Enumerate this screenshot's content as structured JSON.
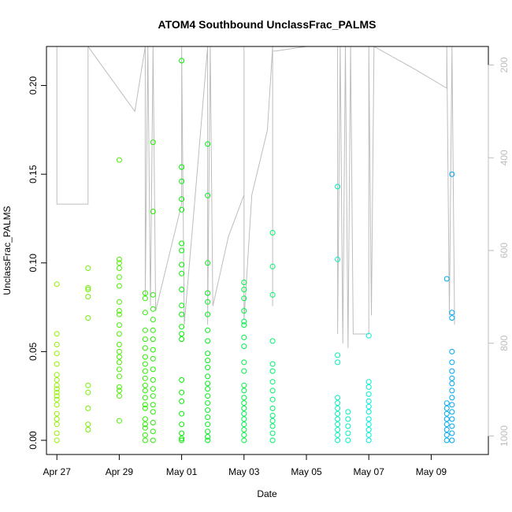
{
  "chart_data": {
    "type": "scatter",
    "title": "ATOM4 Southbound UnclassFrac_PALMS",
    "xlabel": "Date",
    "ylabel": "UnclassFrac_PALMS",
    "x_unit": "date",
    "xlim": [
      "2016-04-26T16:00",
      "2016-05-10T20:00"
    ],
    "ylim": [
      -0.008,
      0.222
    ],
    "x_ticks": [
      {
        "label": "Apr 27",
        "x": "2016-04-27"
      },
      {
        "label": "Apr 29",
        "x": "2016-04-29"
      },
      {
        "label": "May 01",
        "x": "2016-05-01"
      },
      {
        "label": "May 03",
        "x": "2016-05-03"
      },
      {
        "label": "May 05",
        "x": "2016-05-05"
      },
      {
        "label": "May 07",
        "x": "2016-05-07"
      },
      {
        "label": "May 09",
        "x": "2016-05-09"
      }
    ],
    "y_ticks": [
      "0.00",
      "0.05",
      "0.10",
      "0.15",
      "0.20"
    ],
    "right_axis": {
      "color": "#bdbdbd",
      "ylim": [
        1040,
        160
      ],
      "ticks": [
        "200",
        "400",
        "600",
        "800",
        "1000"
      ]
    },
    "point_color_scale": "time, green to blue",
    "points": [
      [
        "2016-04-27T00:00",
        0.0
      ],
      [
        "2016-04-27T00:00",
        0.004
      ],
      [
        "2016-04-27T00:00",
        0.009
      ],
      [
        "2016-04-27T00:00",
        0.012
      ],
      [
        "2016-04-27T00:00",
        0.015
      ],
      [
        "2016-04-27T00:00",
        0.02
      ],
      [
        "2016-04-27T00:00",
        0.023
      ],
      [
        "2016-04-27T00:00",
        0.025
      ],
      [
        "2016-04-27T00:00",
        0.027
      ],
      [
        "2016-04-27T00:00",
        0.029
      ],
      [
        "2016-04-27T00:00",
        0.031
      ],
      [
        "2016-04-27T00:00",
        0.034
      ],
      [
        "2016-04-27T00:00",
        0.037
      ],
      [
        "2016-04-27T00:00",
        0.043
      ],
      [
        "2016-04-27T00:00",
        0.049
      ],
      [
        "2016-04-27T00:00",
        0.054
      ],
      [
        "2016-04-27T00:00",
        0.06
      ],
      [
        "2016-04-27T00:00",
        0.088
      ],
      [
        "2016-04-28T00:00",
        0.006
      ],
      [
        "2016-04-28T00:00",
        0.009
      ],
      [
        "2016-04-28T00:00",
        0.018
      ],
      [
        "2016-04-28T00:00",
        0.027
      ],
      [
        "2016-04-28T00:00",
        0.031
      ],
      [
        "2016-04-28T00:00",
        0.069
      ],
      [
        "2016-04-28T00:00",
        0.081
      ],
      [
        "2016-04-28T00:00",
        0.085
      ],
      [
        "2016-04-28T00:00",
        0.086
      ],
      [
        "2016-04-28T00:00",
        0.097
      ],
      [
        "2016-04-29T00:00",
        0.011
      ],
      [
        "2016-04-29T00:00",
        0.025
      ],
      [
        "2016-04-29T00:00",
        0.028
      ],
      [
        "2016-04-29T00:00",
        0.03
      ],
      [
        "2016-04-29T00:00",
        0.036
      ],
      [
        "2016-04-29T00:00",
        0.04
      ],
      [
        "2016-04-29T00:00",
        0.044
      ],
      [
        "2016-04-29T00:00",
        0.047
      ],
      [
        "2016-04-29T00:00",
        0.05
      ],
      [
        "2016-04-29T00:00",
        0.054
      ],
      [
        "2016-04-29T00:00",
        0.06
      ],
      [
        "2016-04-29T00:00",
        0.065
      ],
      [
        "2016-04-29T00:00",
        0.071
      ],
      [
        "2016-04-29T00:00",
        0.073
      ],
      [
        "2016-04-29T00:00",
        0.078
      ],
      [
        "2016-04-29T00:00",
        0.087
      ],
      [
        "2016-04-29T00:00",
        0.092
      ],
      [
        "2016-04-29T00:00",
        0.097
      ],
      [
        "2016-04-29T00:00",
        0.1
      ],
      [
        "2016-04-29T00:00",
        0.102
      ],
      [
        "2016-04-29T00:00",
        0.158
      ],
      [
        "2016-04-29T20:00",
        0.0
      ],
      [
        "2016-04-29T20:00",
        0.003
      ],
      [
        "2016-04-29T20:00",
        0.007
      ],
      [
        "2016-04-29T20:00",
        0.009
      ],
      [
        "2016-04-29T20:00",
        0.012
      ],
      [
        "2016-04-29T20:00",
        0.018
      ],
      [
        "2016-04-29T20:00",
        0.02
      ],
      [
        "2016-04-29T20:00",
        0.024
      ],
      [
        "2016-04-29T20:00",
        0.028
      ],
      [
        "2016-04-29T20:00",
        0.031
      ],
      [
        "2016-04-29T20:00",
        0.035
      ],
      [
        "2016-04-29T20:00",
        0.039
      ],
      [
        "2016-04-29T20:00",
        0.043
      ],
      [
        "2016-04-29T20:00",
        0.047
      ],
      [
        "2016-04-29T20:00",
        0.052
      ],
      [
        "2016-04-29T20:00",
        0.057
      ],
      [
        "2016-04-29T20:00",
        0.062
      ],
      [
        "2016-04-29T20:00",
        0.072
      ],
      [
        "2016-04-29T20:00",
        0.08
      ],
      [
        "2016-04-29T20:00",
        0.083
      ],
      [
        "2016-04-30T02:00",
        0.0
      ],
      [
        "2016-04-30T02:00",
        0.005
      ],
      [
        "2016-04-30T02:00",
        0.01
      ],
      [
        "2016-04-30T02:00",
        0.016
      ],
      [
        "2016-04-30T02:00",
        0.02
      ],
      [
        "2016-04-30T02:00",
        0.025
      ],
      [
        "2016-04-30T02:00",
        0.029
      ],
      [
        "2016-04-30T02:00",
        0.034
      ],
      [
        "2016-04-30T02:00",
        0.04
      ],
      [
        "2016-04-30T02:00",
        0.046
      ],
      [
        "2016-04-30T02:00",
        0.051
      ],
      [
        "2016-04-30T02:00",
        0.057
      ],
      [
        "2016-04-30T02:00",
        0.062
      ],
      [
        "2016-04-30T02:00",
        0.068
      ],
      [
        "2016-04-30T02:00",
        0.074
      ],
      [
        "2016-04-30T02:00",
        0.082
      ],
      [
        "2016-04-30T02:00",
        0.129
      ],
      [
        "2016-04-30T02:00",
        0.168
      ],
      [
        "2016-05-01T00:00",
        0.0
      ],
      [
        "2016-05-01T00:00",
        0.001
      ],
      [
        "2016-05-01T00:00",
        0.004
      ],
      [
        "2016-05-01T00:00",
        0.009
      ],
      [
        "2016-05-01T00:00",
        0.015
      ],
      [
        "2016-05-01T00:00",
        0.022
      ],
      [
        "2016-05-01T00:00",
        0.027
      ],
      [
        "2016-05-01T00:00",
        0.034
      ],
      [
        "2016-05-01T00:00",
        0.057
      ],
      [
        "2016-05-01T00:00",
        0.06
      ],
      [
        "2016-05-01T00:00",
        0.064
      ],
      [
        "2016-05-01T00:00",
        0.071
      ],
      [
        "2016-05-01T00:00",
        0.076
      ],
      [
        "2016-05-01T00:00",
        0.085
      ],
      [
        "2016-05-01T00:00",
        0.094
      ],
      [
        "2016-05-01T00:00",
        0.099
      ],
      [
        "2016-05-01T00:00",
        0.107
      ],
      [
        "2016-05-01T00:00",
        0.111
      ],
      [
        "2016-05-01T00:00",
        0.13
      ],
      [
        "2016-05-01T00:00",
        0.136
      ],
      [
        "2016-05-01T00:00",
        0.146
      ],
      [
        "2016-05-01T00:00",
        0.154
      ],
      [
        "2016-05-01T00:00",
        0.214
      ],
      [
        "2016-05-01T20:00",
        0.0
      ],
      [
        "2016-05-01T20:00",
        0.002
      ],
      [
        "2016-05-01T20:00",
        0.005
      ],
      [
        "2016-05-01T20:00",
        0.009
      ],
      [
        "2016-05-01T20:00",
        0.013
      ],
      [
        "2016-05-01T20:00",
        0.017
      ],
      [
        "2016-05-01T20:00",
        0.021
      ],
      [
        "2016-05-01T20:00",
        0.025
      ],
      [
        "2016-05-01T20:00",
        0.029
      ],
      [
        "2016-05-01T20:00",
        0.032
      ],
      [
        "2016-05-01T20:00",
        0.036
      ],
      [
        "2016-05-01T20:00",
        0.041
      ],
      [
        "2016-05-01T20:00",
        0.045
      ],
      [
        "2016-05-01T20:00",
        0.049
      ],
      [
        "2016-05-01T20:00",
        0.056
      ],
      [
        "2016-05-01T20:00",
        0.062
      ],
      [
        "2016-05-01T20:00",
        0.071
      ],
      [
        "2016-05-01T20:00",
        0.078
      ],
      [
        "2016-05-01T20:00",
        0.083
      ],
      [
        "2016-05-01T20:00",
        0.1
      ],
      [
        "2016-05-01T20:00",
        0.138
      ],
      [
        "2016-05-01T20:00",
        0.167
      ],
      [
        "2016-05-03T00:00",
        0.0
      ],
      [
        "2016-05-03T00:00",
        0.003
      ],
      [
        "2016-05-03T00:00",
        0.006
      ],
      [
        "2016-05-03T00:00",
        0.009
      ],
      [
        "2016-05-03T00:00",
        0.012
      ],
      [
        "2016-05-03T00:00",
        0.015
      ],
      [
        "2016-05-03T00:00",
        0.018
      ],
      [
        "2016-05-03T00:00",
        0.021
      ],
      [
        "2016-05-03T00:00",
        0.024
      ],
      [
        "2016-05-03T00:00",
        0.028
      ],
      [
        "2016-05-03T00:00",
        0.031
      ],
      [
        "2016-05-03T00:00",
        0.039
      ],
      [
        "2016-05-03T00:00",
        0.044
      ],
      [
        "2016-05-03T00:00",
        0.053
      ],
      [
        "2016-05-03T00:00",
        0.058
      ],
      [
        "2016-05-03T00:00",
        0.065
      ],
      [
        "2016-05-03T00:00",
        0.067
      ],
      [
        "2016-05-03T00:00",
        0.073
      ],
      [
        "2016-05-03T00:00",
        0.08
      ],
      [
        "2016-05-03T00:00",
        0.085
      ],
      [
        "2016-05-03T00:00",
        0.089
      ],
      [
        "2016-05-03T22:00",
        0.0
      ],
      [
        "2016-05-03T22:00",
        0.004
      ],
      [
        "2016-05-03T22:00",
        0.008
      ],
      [
        "2016-05-03T22:00",
        0.011
      ],
      [
        "2016-05-03T22:00",
        0.014
      ],
      [
        "2016-05-03T22:00",
        0.018
      ],
      [
        "2016-05-03T22:00",
        0.023
      ],
      [
        "2016-05-03T22:00",
        0.028
      ],
      [
        "2016-05-03T22:00",
        0.033
      ],
      [
        "2016-05-03T22:00",
        0.039
      ],
      [
        "2016-05-03T22:00",
        0.043
      ],
      [
        "2016-05-03T22:00",
        0.056
      ],
      [
        "2016-05-03T22:00",
        0.082
      ],
      [
        "2016-05-03T22:00",
        0.098
      ],
      [
        "2016-05-03T22:00",
        0.117
      ],
      [
        "2016-05-06T00:00",
        0.0
      ],
      [
        "2016-05-06T00:00",
        0.003
      ],
      [
        "2016-05-06T00:00",
        0.006
      ],
      [
        "2016-05-06T00:00",
        0.009
      ],
      [
        "2016-05-06T00:00",
        0.012
      ],
      [
        "2016-05-06T00:00",
        0.015
      ],
      [
        "2016-05-06T00:00",
        0.018
      ],
      [
        "2016-05-06T00:00",
        0.021
      ],
      [
        "2016-05-06T00:00",
        0.024
      ],
      [
        "2016-05-06T00:00",
        0.044
      ],
      [
        "2016-05-06T00:00",
        0.048
      ],
      [
        "2016-05-06T00:00",
        0.102
      ],
      [
        "2016-05-06T00:00",
        0.143
      ],
      [
        "2016-05-06T08:00",
        0.0
      ],
      [
        "2016-05-06T08:00",
        0.004
      ],
      [
        "2016-05-06T08:00",
        0.008
      ],
      [
        "2016-05-06T08:00",
        0.012
      ],
      [
        "2016-05-06T08:00",
        0.016
      ],
      [
        "2016-05-07T00:00",
        0.0
      ],
      [
        "2016-05-07T00:00",
        0.003
      ],
      [
        "2016-05-07T00:00",
        0.006
      ],
      [
        "2016-05-07T00:00",
        0.009
      ],
      [
        "2016-05-07T00:00",
        0.012
      ],
      [
        "2016-05-07T00:00",
        0.016
      ],
      [
        "2016-05-07T00:00",
        0.019
      ],
      [
        "2016-05-07T00:00",
        0.022
      ],
      [
        "2016-05-07T00:00",
        0.026
      ],
      [
        "2016-05-07T00:00",
        0.03
      ],
      [
        "2016-05-07T00:00",
        0.033
      ],
      [
        "2016-05-07T00:00",
        0.059
      ],
      [
        "2016-05-09T12:00",
        0.0
      ],
      [
        "2016-05-09T12:00",
        0.003
      ],
      [
        "2016-05-09T12:00",
        0.006
      ],
      [
        "2016-05-09T12:00",
        0.009
      ],
      [
        "2016-05-09T12:00",
        0.012
      ],
      [
        "2016-05-09T12:00",
        0.015
      ],
      [
        "2016-05-09T12:00",
        0.018
      ],
      [
        "2016-05-09T12:00",
        0.021
      ],
      [
        "2016-05-09T12:00",
        0.091
      ],
      [
        "2016-05-09T16:00",
        0.0
      ],
      [
        "2016-05-09T16:00",
        0.004
      ],
      [
        "2016-05-09T16:00",
        0.008
      ],
      [
        "2016-05-09T16:00",
        0.012
      ],
      [
        "2016-05-09T16:00",
        0.016
      ],
      [
        "2016-05-09T16:00",
        0.02
      ],
      [
        "2016-05-09T16:00",
        0.024
      ],
      [
        "2016-05-09T16:00",
        0.028
      ],
      [
        "2016-05-09T16:00",
        0.032
      ],
      [
        "2016-05-09T16:00",
        0.035
      ],
      [
        "2016-05-09T16:00",
        0.039
      ],
      [
        "2016-05-09T16:00",
        0.044
      ],
      [
        "2016-05-09T16:00",
        0.05
      ],
      [
        "2016-05-09T16:00",
        0.069
      ],
      [
        "2016-05-09T16:00",
        0.072
      ],
      [
        "2016-05-09T16:00",
        0.15
      ]
    ],
    "pressure_trace": [
      [
        "2016-04-27T00:00",
        160
      ],
      [
        "2016-04-27T00:00",
        500
      ],
      [
        "2016-04-28T00:00",
        500
      ],
      [
        "2016-04-28T00:00",
        160
      ],
      [
        "2016-04-29T12:00",
        300
      ],
      [
        "2016-04-29T20:00",
        160
      ],
      [
        "2016-04-29T20:00",
        700
      ],
      [
        "2016-04-29T22:00",
        160
      ],
      [
        "2016-04-30T00:00",
        720
      ],
      [
        "2016-04-30T02:00",
        160
      ],
      [
        "2016-04-30T04:00",
        730
      ],
      [
        "2016-05-01T00:00",
        500
      ],
      [
        "2016-05-01T00:00",
        160
      ],
      [
        "2016-05-01T02:00",
        760
      ],
      [
        "2016-05-01T12:00",
        430
      ],
      [
        "2016-05-01T20:00",
        160
      ],
      [
        "2016-05-01T20:00",
        760
      ],
      [
        "2016-05-01T22:00",
        160
      ],
      [
        "2016-05-02T00:00",
        720
      ],
      [
        "2016-05-02T12:00",
        570
      ],
      [
        "2016-05-03T00:00",
        480
      ],
      [
        "2016-05-03T00:00",
        160
      ],
      [
        "2016-05-03T00:00",
        750
      ],
      [
        "2016-05-03T06:00",
        480
      ],
      [
        "2016-05-03T18:00",
        340
      ],
      [
        "2016-05-03T22:00",
        160
      ],
      [
        "2016-05-03T22:00",
        720
      ],
      [
        "2016-05-03T22:00",
        170
      ],
      [
        "2016-05-04T00:00",
        170
      ],
      [
        "2016-05-05T00:00",
        160
      ],
      [
        "2016-05-06T00:00",
        160
      ],
      [
        "2016-05-06T00:00",
        780
      ],
      [
        "2016-05-06T02:00",
        160
      ],
      [
        "2016-05-06T04:00",
        800
      ],
      [
        "2016-05-06T06:00",
        160
      ],
      [
        "2016-05-06T08:00",
        810
      ],
      [
        "2016-05-06T10:00",
        160
      ],
      [
        "2016-05-06T12:00",
        780
      ],
      [
        "2016-05-07T00:00",
        780
      ],
      [
        "2016-05-07T00:00",
        160
      ],
      [
        "2016-05-07T02:00",
        740
      ],
      [
        "2016-05-07T04:00",
        160
      ],
      [
        "2016-05-08T12:00",
        210
      ],
      [
        "2016-05-09T12:00",
        250
      ],
      [
        "2016-05-09T12:00",
        160
      ],
      [
        "2016-05-09T14:00",
        740
      ],
      [
        "2016-05-09T16:00",
        160
      ],
      [
        "2016-05-09T18:00",
        760
      ]
    ]
  }
}
